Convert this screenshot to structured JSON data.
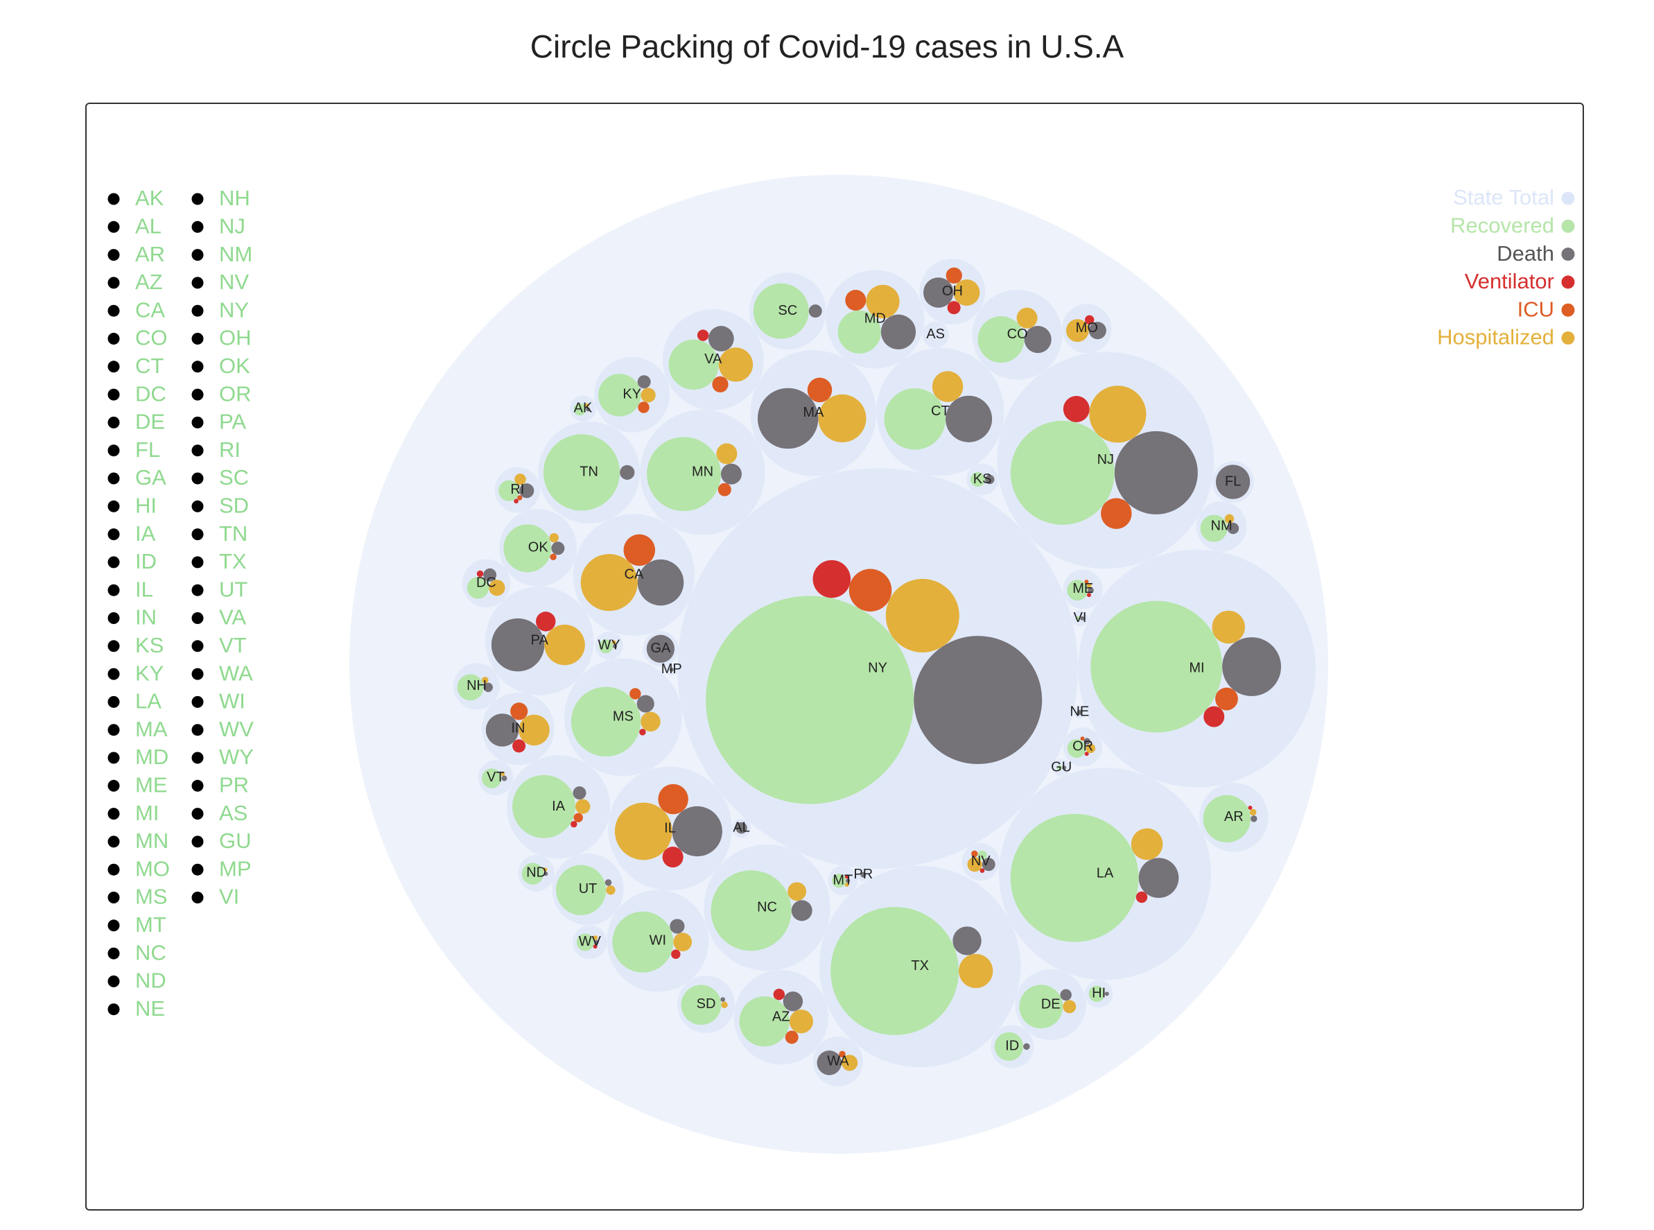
{
  "chart_data": {
    "type": "circle-packing",
    "title": "Circle Packing of Covid-19 cases in U.S.A",
    "metrics": [
      "Recovered",
      "Death",
      "Ventilator",
      "ICU",
      "Hospitalized"
    ],
    "legend": {
      "placement": "top-right",
      "items": [
        {
          "label": "State Total",
          "color": "#dce6f8"
        },
        {
          "label": "Recovered",
          "color": "#b5e5a8"
        },
        {
          "label": "Death",
          "color": "#757278"
        },
        {
          "label": "Ventilator",
          "color": "#d62f2f"
        },
        {
          "label": "ICU",
          "color": "#dd5d25"
        },
        {
          "label": "Hospitalized",
          "color": "#e3b03b"
        }
      ]
    },
    "state_list": [
      "AK",
      "AL",
      "AR",
      "AZ",
      "CA",
      "CO",
      "CT",
      "DC",
      "DE",
      "FL",
      "GA",
      "HI",
      "IA",
      "ID",
      "IL",
      "IN",
      "KS",
      "KY",
      "LA",
      "MA",
      "MD",
      "ME",
      "MI",
      "MN",
      "MO",
      "MS",
      "MT",
      "NC",
      "ND",
      "NE",
      "NH",
      "NJ",
      "NM",
      "NV",
      "NY",
      "OH",
      "OK",
      "OR",
      "PA",
      "RI",
      "SC",
      "SD",
      "TN",
      "TX",
      "UT",
      "VA",
      "VT",
      "WA",
      "WI",
      "WV",
      "WY",
      "PR",
      "AS",
      "GU",
      "MP",
      "VI"
    ],
    "states": [
      {
        "state": "NY",
        "recovered": 100,
        "death": 38,
        "ventilator": 3.3,
        "icu": 4.2,
        "hospitalized": 12.5
      },
      {
        "state": "MI",
        "recovered": 40,
        "death": 8,
        "ventilator": 1,
        "icu": 1.2,
        "hospitalized": 2.5
      },
      {
        "state": "NJ",
        "recovered": 25,
        "death": 16,
        "ventilator": 1.6,
        "icu": 2.2,
        "hospitalized": 7.5
      },
      {
        "state": "LA",
        "recovered": 38,
        "death": 3.7,
        "ventilator": 0.3,
        "icu": 0,
        "hospitalized": 2.3
      },
      {
        "state": "TX",
        "recovered": 38,
        "death": 1.9,
        "ventilator": 0,
        "icu": 0,
        "hospitalized": 2.7
      },
      {
        "state": "IL",
        "recovered": 0,
        "death": 5.8,
        "ventilator": 1,
        "icu": 2.1,
        "hospitalized": 7.6
      },
      {
        "state": "CA",
        "recovered": 0,
        "death": 4.9,
        "ventilator": 0,
        "icu": 2.3,
        "hospitalized": 7.5
      },
      {
        "state": "MA",
        "recovered": 0,
        "death": 8.5,
        "ventilator": 0,
        "icu": 1.4,
        "hospitalized": 5.3
      },
      {
        "state": "CT",
        "recovered": 8.7,
        "death": 5,
        "ventilator": 0,
        "icu": 0,
        "hospitalized": 2.2
      },
      {
        "state": "NC",
        "recovered": 15,
        "death": 1,
        "ventilator": 0,
        "icu": 0,
        "hospitalized": 0.8
      },
      {
        "state": "TN",
        "recovered": 13.5,
        "death": 0.5,
        "ventilator": 0,
        "icu": 0,
        "hospitalized": 0
      },
      {
        "state": "MN",
        "recovered": 12.7,
        "death": 1,
        "ventilator": 0,
        "icu": 0.4,
        "hospitalized": 1
      },
      {
        "state": "PA",
        "recovered": 0,
        "death": 6.5,
        "ventilator": 0.9,
        "icu": 0,
        "hospitalized": 3.8
      },
      {
        "state": "VA",
        "recovered": 5.8,
        "death": 1.5,
        "ventilator": 0.3,
        "icu": 0.6,
        "hospitalized": 2.7
      },
      {
        "state": "MD",
        "recovered": 4.3,
        "death": 2.8,
        "ventilator": 0,
        "icu": 1,
        "hospitalized": 2.6
      },
      {
        "state": "OH",
        "recovered": 0,
        "death": 2.1,
        "ventilator": 0.4,
        "icu": 0.6,
        "hospitalized": 1.6
      },
      {
        "state": "MS",
        "recovered": 11.2,
        "death": 0.7,
        "ventilator": 0.1,
        "icu": 0.3,
        "hospitalized": 0.9
      },
      {
        "state": "CO",
        "recovered": 5,
        "death": 1.7,
        "ventilator": 0,
        "icu": 0,
        "hospitalized": 1
      },
      {
        "state": "WI",
        "recovered": 8.6,
        "death": 0.5,
        "ventilator": 0.2,
        "icu": 0,
        "hospitalized": 0.8
      },
      {
        "state": "IN",
        "recovered": 0,
        "death": 2.5,
        "ventilator": 0.4,
        "icu": 0.7,
        "hospitalized": 2.2
      },
      {
        "state": "IA",
        "recovered": 9.2,
        "death": 0.4,
        "ventilator": 0.1,
        "icu": 0.2,
        "hospitalized": 0.5
      },
      {
        "state": "OK",
        "recovered": 5.3,
        "death": 0.4,
        "ventilator": 0,
        "icu": 0.1,
        "hospitalized": 0.2
      },
      {
        "state": "AZ",
        "recovered": 5.8,
        "death": 0.9,
        "ventilator": 0.3,
        "icu": 0.4,
        "hospitalized": 1.3
      },
      {
        "state": "SC",
        "recovered": 7.1,
        "death": 0.4,
        "ventilator": 0,
        "icu": 0,
        "hospitalized": 0
      },
      {
        "state": "UT",
        "recovered": 5.8,
        "death": 0.1,
        "ventilator": 0,
        "icu": 0,
        "hospitalized": 0.2
      },
      {
        "state": "DE",
        "recovered": 4.4,
        "death": 0.3,
        "ventilator": 0,
        "icu": 0,
        "hospitalized": 0.4
      },
      {
        "state": "KY",
        "recovered": 4.2,
        "death": 0.4,
        "ventilator": 0,
        "icu": 0.3,
        "hospitalized": 0.5
      },
      {
        "state": "AR",
        "recovered": 5.2,
        "death": 0.1,
        "ventilator": 0.02,
        "icu": 0,
        "hospitalized": 0.1
      },
      {
        "state": "SD",
        "recovered": 3.7,
        "death": 0.05,
        "ventilator": 0,
        "icu": 0,
        "hospitalized": 0.1
      },
      {
        "state": "MO",
        "recovered": 0,
        "death": 0.7,
        "ventilator": 0.2,
        "icu": 0,
        "hospitalized": 1.2
      },
      {
        "state": "FL",
        "recovered": 0,
        "death": 2.7,
        "ventilator": 0,
        "icu": 0,
        "hospitalized": 0
      },
      {
        "state": "GA",
        "recovered": 0,
        "death": 1.8,
        "ventilator": 0,
        "icu": 0,
        "hospitalized": 0
      },
      {
        "state": "WA",
        "recovered": 0,
        "death": 1.4,
        "ventilator": 0,
        "icu": 0.1,
        "hospitalized": 0.6
      },
      {
        "state": "DC",
        "recovered": 1.1,
        "death": 0.4,
        "ventilator": 0.1,
        "icu": 0,
        "hospitalized": 0.6
      },
      {
        "state": "NM",
        "recovered": 1.7,
        "death": 0.3,
        "ventilator": 0,
        "icu": 0,
        "hospitalized": 0.2
      },
      {
        "state": "NH",
        "recovered": 1.6,
        "death": 0.2,
        "ventilator": 0,
        "icu": 0,
        "hospitalized": 0.1
      },
      {
        "state": "ID",
        "recovered": 1.9,
        "death": 0.1,
        "ventilator": 0,
        "icu": 0,
        "hospitalized": 0
      },
      {
        "state": "ME",
        "recovered": 1,
        "death": 0.08,
        "ventilator": 0.02,
        "icu": 0.03,
        "hospitalized": 0.05
      },
      {
        "state": "VT",
        "recovered": 0.9,
        "death": 0.07,
        "ventilator": 0,
        "icu": 0,
        "hospitalized": 0.02
      },
      {
        "state": "WV",
        "recovered": 0.7,
        "death": 0.05,
        "ventilator": 0.01,
        "icu": 0,
        "hospitalized": 0.05
      },
      {
        "state": "ND",
        "recovered": 1.1,
        "death": 0.04,
        "ventilator": 0,
        "icu": 0,
        "hospitalized": 0.03
      },
      {
        "state": "NV",
        "recovered": 0.2,
        "death": 0.4,
        "ventilator": 0.05,
        "icu": 0.1,
        "hospitalized": 0.5
      },
      {
        "state": "RI",
        "recovered": 1,
        "death": 0.5,
        "ventilator": 0.05,
        "icu": 0.06,
        "hospitalized": 0.3
      },
      {
        "state": "OR",
        "recovered": 0.8,
        "death": 0.1,
        "ventilator": 0.02,
        "icu": 0.03,
        "hospitalized": 0.2
      },
      {
        "state": "KS",
        "recovered": 0.5,
        "death": 0.2,
        "ventilator": 0,
        "icu": 0,
        "hospitalized": 0
      },
      {
        "state": "AK",
        "recovered": 0.35,
        "death": 0.01,
        "ventilator": 0,
        "icu": 0,
        "hospitalized": 0.01
      },
      {
        "state": "HI",
        "recovered": 0.6,
        "death": 0.02,
        "ventilator": 0,
        "icu": 0,
        "hospitalized": 0
      },
      {
        "state": "MT",
        "recovered": 0.45,
        "death": 0.02,
        "ventilator": 0.005,
        "icu": 0,
        "hospitalized": 0.01
      },
      {
        "state": "WY",
        "recovered": 0.45,
        "death": 0.01,
        "ventilator": 0,
        "icu": 0,
        "hospitalized": 0.02
      },
      {
        "state": "AL",
        "recovered": 0,
        "death": 0.3,
        "ventilator": 0,
        "icu": 0,
        "hospitalized": 0
      },
      {
        "state": "NE",
        "recovered": 0,
        "death": 0.06,
        "ventilator": 0,
        "icu": 0,
        "hospitalized": 0
      },
      {
        "state": "VI",
        "recovered": 0.05,
        "death": 0.005,
        "ventilator": 0,
        "icu": 0,
        "hospitalized": 0
      },
      {
        "state": "GU",
        "recovered": 0.07,
        "death": 0.01,
        "ventilator": 0,
        "icu": 0,
        "hospitalized": 0
      },
      {
        "state": "PR",
        "recovered": 0,
        "death": 0.07,
        "ventilator": 0,
        "icu": 0,
        "hospitalized": 0
      },
      {
        "state": "AS",
        "recovered": 0,
        "death": 0,
        "ventilator": 0,
        "icu": 0,
        "hospitalized": 0
      },
      {
        "state": "MP",
        "recovered": 0,
        "death": 0.005,
        "ventilator": 0,
        "icu": 0,
        "hospitalized": 0
      }
    ]
  }
}
